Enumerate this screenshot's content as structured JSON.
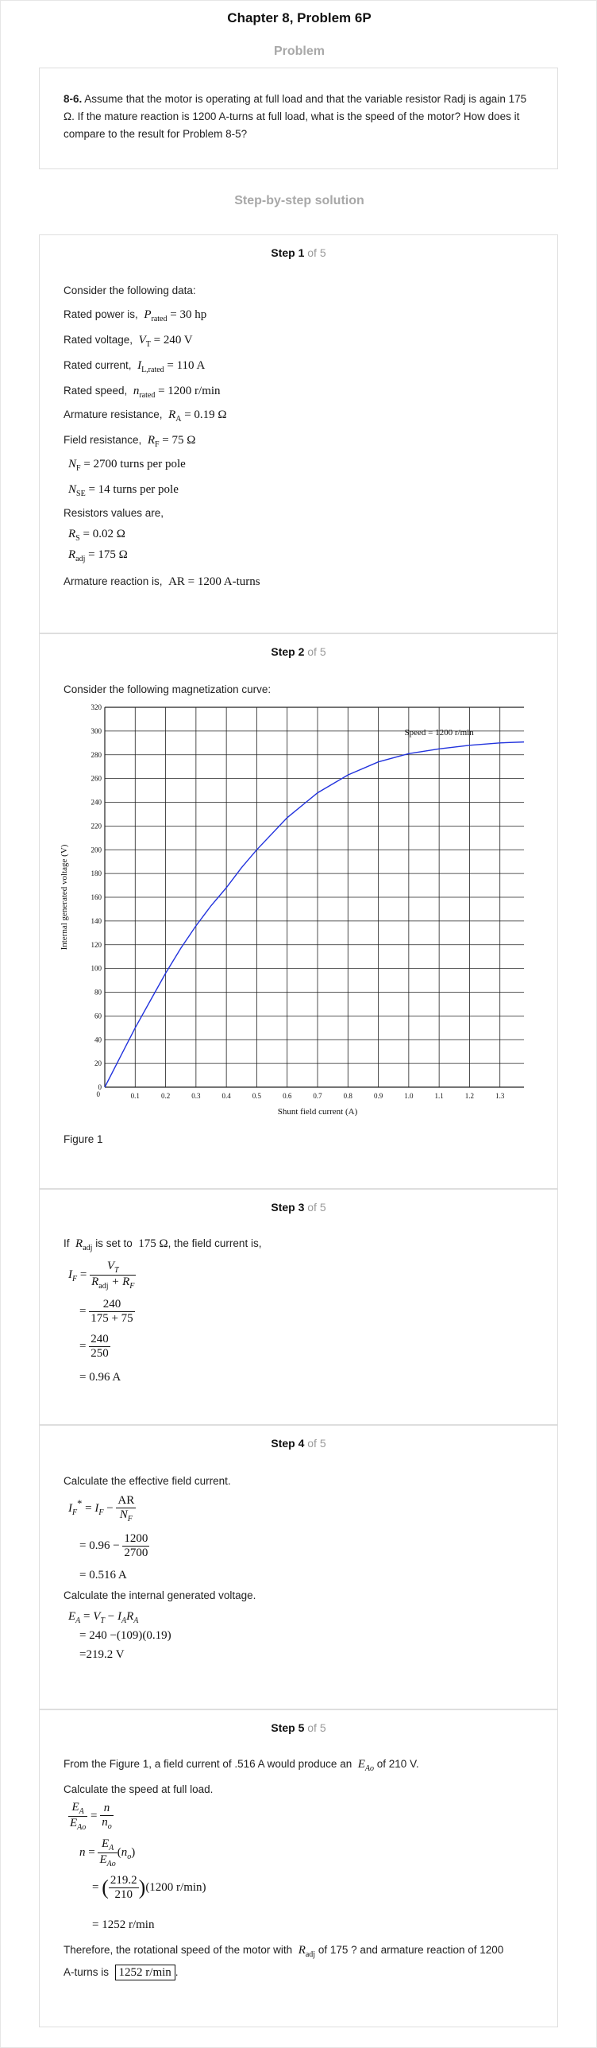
{
  "header": {
    "title": "Chapter 8, Problem 6P"
  },
  "problem": {
    "heading": "Problem",
    "number": "8-6.",
    "text": "Assume that the motor is operating at full load and that the variable resistor Radj is again 175 Ω. If the mature reaction is 1200 A-turns at full load, what is the speed of the motor? How does it compare to the result for Problem 8-5?"
  },
  "solution": {
    "heading": "Step-by-step solution"
  },
  "steps": [
    {
      "label": "Step 1",
      "of": "of 5",
      "intro": "Consider the following data:",
      "items": [
        {
          "label": "Rated power is,",
          "symbol": "P",
          "sub": "rated",
          "value": "= 30 hp"
        },
        {
          "label": "Rated voltage,",
          "symbol": "V",
          "sub": "T",
          "value": "= 240 V"
        },
        {
          "label": "Rated current,",
          "symbol": "I",
          "sub": "L,rated",
          "value": "= 110 A"
        },
        {
          "label": "Rated speed,",
          "symbol": "n",
          "sub": "rated",
          "value": "= 1200 r/min"
        },
        {
          "label": "Armature resistance,",
          "symbol": "R",
          "sub": "A",
          "value": "= 0.19 Ω"
        },
        {
          "label": "Field resistance,",
          "symbol": "R",
          "sub": "F",
          "value": "= 75 Ω"
        }
      ],
      "nf": {
        "symbol": "N",
        "sub": "F",
        "value": "= 2700 turns per pole"
      },
      "nse": {
        "symbol": "N",
        "sub": "SE",
        "value": "= 14 turns per pole"
      },
      "resistors_label": "Resistors values are,",
      "rs": {
        "symbol": "R",
        "sub": "S",
        "value": "= 0.02 Ω"
      },
      "radj": {
        "symbol": "R",
        "sub": "adj",
        "value": "= 175 Ω"
      },
      "ar_label": "Armature reaction is,",
      "ar_value": "AR = 1200 A-turns"
    },
    {
      "label": "Step 2",
      "of": "of 5",
      "intro": "Consider the following magnetization curve:",
      "figure_caption": "Figure 1"
    },
    {
      "label": "Step 3",
      "of": "of 5",
      "intro_a": "If",
      "intro_sym": "R",
      "intro_sub": "adj",
      "intro_b": "is set to",
      "intro_val": "175 Ω",
      "intro_c": ", the field current is,",
      "eq_num1": "V",
      "eq_num1_sub": "T",
      "eq_den1": "R",
      "eq_den1_sub": "adj",
      "eq_den1_b": "+ R",
      "eq_den1_sub2": "F",
      "eq_num2": "240",
      "eq_den2": "175 + 75",
      "eq_num3": "240",
      "eq_den3": "250",
      "eq_result": "= 0.96 A"
    },
    {
      "label": "Step 4",
      "of": "of 5",
      "intro1": "Calculate the effective field current.",
      "eq1_num": "AR",
      "eq1_den": "N",
      "eq1_den_sub": "F",
      "eq2_pre": "= 0.96 −",
      "eq2_num": "1200",
      "eq2_den": "2700",
      "eq3": "= 0.516 A",
      "intro2": "Calculate the internal generated voltage.",
      "eq4": "= 240  −(109)(0.19)",
      "eq5": "=219.2 V"
    },
    {
      "label": "Step 5",
      "of": "of 5",
      "text1_a": "From the Figure 1, a field current of .516 A would produce an",
      "text1_sym": "E",
      "text1_sub": "Ao",
      "text1_b": "of 210 V.",
      "text2": "Calculate the speed at full load.",
      "frac_num": "219.2",
      "frac_den": "210",
      "speed_tail": "(1200 r/min)",
      "result": "= 1252 r/min",
      "conclusion_a": "Therefore, the rotational speed of the motor with",
      "conclusion_sym": "R",
      "conclusion_sub": "adj",
      "conclusion_b": "of 175 ? and armature reaction of 1200",
      "conclusion_c": "A-turns is",
      "final_answer": "1252 r/min",
      "final_dot": "."
    }
  ],
  "chart_data": {
    "type": "line",
    "xlabel": "Shunt field current (A)",
    "ylabel": "Internal generated voltage (V)",
    "annotation": "Speed = 1200 r/min",
    "xlim": [
      0,
      1.4
    ],
    "ylim": [
      0,
      320
    ],
    "xticks": [
      "0.1",
      "0.2",
      "0.3",
      "0.4",
      "0.5",
      "0.6",
      "0.7",
      "0.8",
      "0.9",
      "1.0",
      "1.1",
      "1.2",
      "1.3",
      "1.4"
    ],
    "yticks": [
      "0",
      "20",
      "40",
      "60",
      "80",
      "100",
      "120",
      "140",
      "160",
      "180",
      "200",
      "220",
      "240",
      "260",
      "280",
      "300",
      "320"
    ],
    "x0_label": "0",
    "grid": true,
    "line_color": "#2233dd",
    "series": [
      {
        "x": [
          0,
          0.05,
          0.1,
          0.15,
          0.2,
          0.25,
          0.3,
          0.35,
          0.4,
          0.45,
          0.5,
          0.6,
          0.7,
          0.8,
          0.9,
          1.0,
          1.1,
          1.2,
          1.3,
          1.4
        ],
        "y": [
          0,
          25,
          50,
          73,
          96,
          117,
          136,
          153,
          168,
          185,
          200,
          227,
          248,
          263,
          274,
          281,
          285,
          288,
          290,
          291
        ]
      }
    ]
  }
}
